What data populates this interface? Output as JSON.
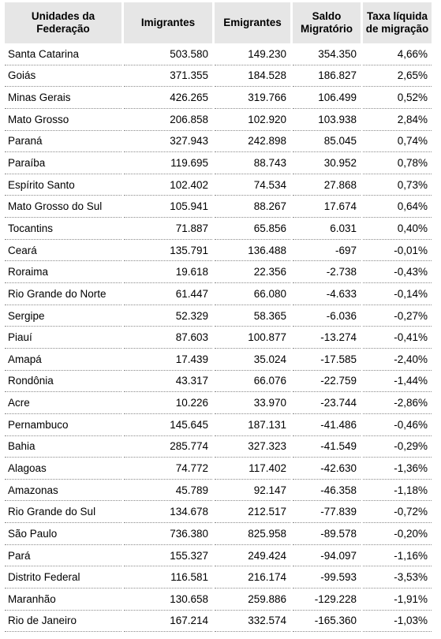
{
  "headers": [
    "Unidades da\nFederação",
    "Imigrantes",
    "Emigrantes",
    "Saldo\nMigratório",
    "Taxa líquida\nde migração"
  ],
  "rows": [
    [
      "Santa Catarina",
      "503.580",
      "149.230",
      "354.350",
      "4,66%"
    ],
    [
      "Goiás",
      "371.355",
      "184.528",
      "186.827",
      "2,65%"
    ],
    [
      "Minas Gerais",
      "426.265",
      "319.766",
      "106.499",
      "0,52%"
    ],
    [
      "Mato Grosso",
      "206.858",
      "102.920",
      "103.938",
      "2,84%"
    ],
    [
      "Paraná",
      "327.943",
      "242.898",
      "85.045",
      "0,74%"
    ],
    [
      "Paraíba",
      "119.695",
      "88.743",
      "30.952",
      "0,78%"
    ],
    [
      "Espírito Santo",
      "102.402",
      "74.534",
      "27.868",
      "0,73%"
    ],
    [
      "Mato Grosso do Sul",
      "105.941",
      "88.267",
      "17.674",
      "0,64%"
    ],
    [
      "Tocantins",
      "71.887",
      "65.856",
      "6.031",
      "0,40%"
    ],
    [
      "Ceará",
      "135.791",
      "136.488",
      "-697",
      "-0,01%"
    ],
    [
      "Roraima",
      "19.618",
      "22.356",
      "-2.738",
      "-0,43%"
    ],
    [
      "Rio Grande do Norte",
      "61.447",
      "66.080",
      "-4.633",
      "-0,14%"
    ],
    [
      "Sergipe",
      "52.329",
      "58.365",
      "-6.036",
      "-0,27%"
    ],
    [
      "Piauí",
      "87.603",
      "100.877",
      "-13.274",
      "-0,41%"
    ],
    [
      "Amapá",
      "17.439",
      "35.024",
      "-17.585",
      "-2,40%"
    ],
    [
      "Rondônia",
      "43.317",
      "66.076",
      "-22.759",
      "-1,44%"
    ],
    [
      "Acre",
      "10.226",
      "33.970",
      "-23.744",
      "-2,86%"
    ],
    [
      "Pernambuco",
      "145.645",
      "187.131",
      "-41.486",
      "-0,46%"
    ],
    [
      "Bahia",
      "285.774",
      "327.323",
      "-41.549",
      "-0,29%"
    ],
    [
      "Alagoas",
      "74.772",
      "117.402",
      "-42.630",
      "-1,36%"
    ],
    [
      "Amazonas",
      "45.789",
      "92.147",
      "-46.358",
      "-1,18%"
    ],
    [
      "Rio Grande do Sul",
      "134.678",
      "212.517",
      "-77.839",
      "-0,72%"
    ],
    [
      "São Paulo",
      "736.380",
      "825.958",
      "-89.578",
      "-0,20%"
    ],
    [
      "Pará",
      "155.327",
      "249.424",
      "-94.097",
      "-1,16%"
    ],
    [
      "Distrito Federal",
      "116.581",
      "216.174",
      "-99.593",
      "-3,53%"
    ],
    [
      "Maranhão",
      "130.658",
      "259.886",
      "-129.228",
      "-1,91%"
    ],
    [
      "Rio de Janeiro",
      "167.214",
      "332.574",
      "-165.360",
      "-1,03%"
    ]
  ]
}
